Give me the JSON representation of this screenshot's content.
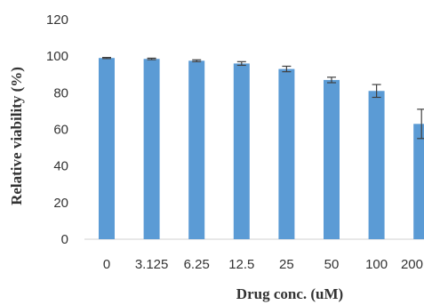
{
  "chart_data": {
    "type": "bar",
    "categories": [
      "0",
      "3.125",
      "6.25",
      "12.5",
      "25",
      "50",
      "100",
      "200"
    ],
    "values": [
      99,
      98.5,
      97.5,
      96,
      93,
      87,
      81,
      63
    ],
    "error": [
      0.3,
      0.4,
      0.5,
      1,
      1.5,
      1.5,
      3.5,
      8
    ],
    "xlabel": "Drug conc. (uM)",
    "ylabel": "Relative viability (%)",
    "ylim": [
      0,
      120
    ],
    "yticks": [
      "0",
      "20",
      "40",
      "60",
      "80",
      "100",
      "120"
    ],
    "grid": false,
    "bar_color": "#5b9bd5",
    "error_color": "#404040",
    "axis_color": "#d0d0d0"
  }
}
